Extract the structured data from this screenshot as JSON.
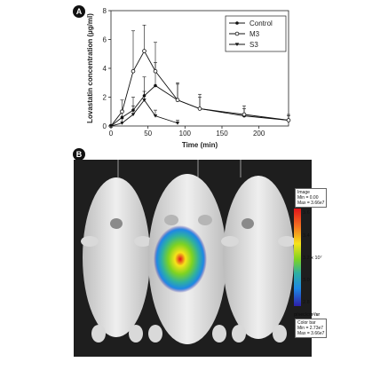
{
  "panel_a_label": "A",
  "panel_b_label": "B",
  "chart_data": {
    "type": "line",
    "title": "",
    "xlabel": "Time (min)",
    "ylabel": "Lovastatin concentration (µg/ml)",
    "xlim": [
      0,
      240
    ],
    "ylim": [
      0,
      8
    ],
    "xticks": [
      0,
      50,
      100,
      150,
      200
    ],
    "yticks": [
      0,
      2,
      4,
      6,
      8
    ],
    "legend_position": "top-right",
    "series": [
      {
        "name": "Control",
        "marker": "circle-filled",
        "x": [
          0,
          15,
          30,
          45,
          60,
          90,
          120,
          180,
          240
        ],
        "y": [
          0,
          0.6,
          1.1,
          2.1,
          2.8,
          1.8,
          1.2,
          0.7,
          0.4
        ],
        "err": [
          0,
          0.5,
          0.9,
          1.3,
          1.6,
          1.1,
          0.8,
          0.5,
          0.3
        ]
      },
      {
        "name": "M3",
        "marker": "circle-open",
        "x": [
          0,
          15,
          30,
          45,
          60,
          90,
          120,
          180,
          240
        ],
        "y": [
          0,
          1.0,
          3.8,
          5.2,
          3.8,
          1.8,
          1.2,
          0.8,
          0.4
        ],
        "err": [
          0,
          0.8,
          2.8,
          1.8,
          2.0,
          1.2,
          1.0,
          0.6,
          0.4
        ]
      },
      {
        "name": "S3",
        "marker": "triangle-down",
        "x": [
          0,
          15,
          30,
          45,
          60,
          90
        ],
        "y": [
          0,
          0.2,
          0.8,
          1.8,
          0.7,
          0.2
        ],
        "err": [
          0,
          0.3,
          0.6,
          0.6,
          0.4,
          0.2
        ]
      }
    ]
  },
  "color_bar": {
    "top_box": {
      "title": "Image",
      "min": "Min = 0.00",
      "max": "Max = 3.66e7"
    },
    "ticks": [
      "3.6",
      "3.4",
      "3.2 x 10⁷",
      "3.0",
      "2.8"
    ],
    "unit": "p/sec/cm²/sr",
    "bottom_box": {
      "title": "Color bar",
      "min": "Min = 2.73e7",
      "max": "Max = 3.66e7"
    },
    "colors": [
      "#e0141a",
      "#f7e31a",
      "#7ed321",
      "#1e88e5",
      "#2d1fa8"
    ]
  }
}
